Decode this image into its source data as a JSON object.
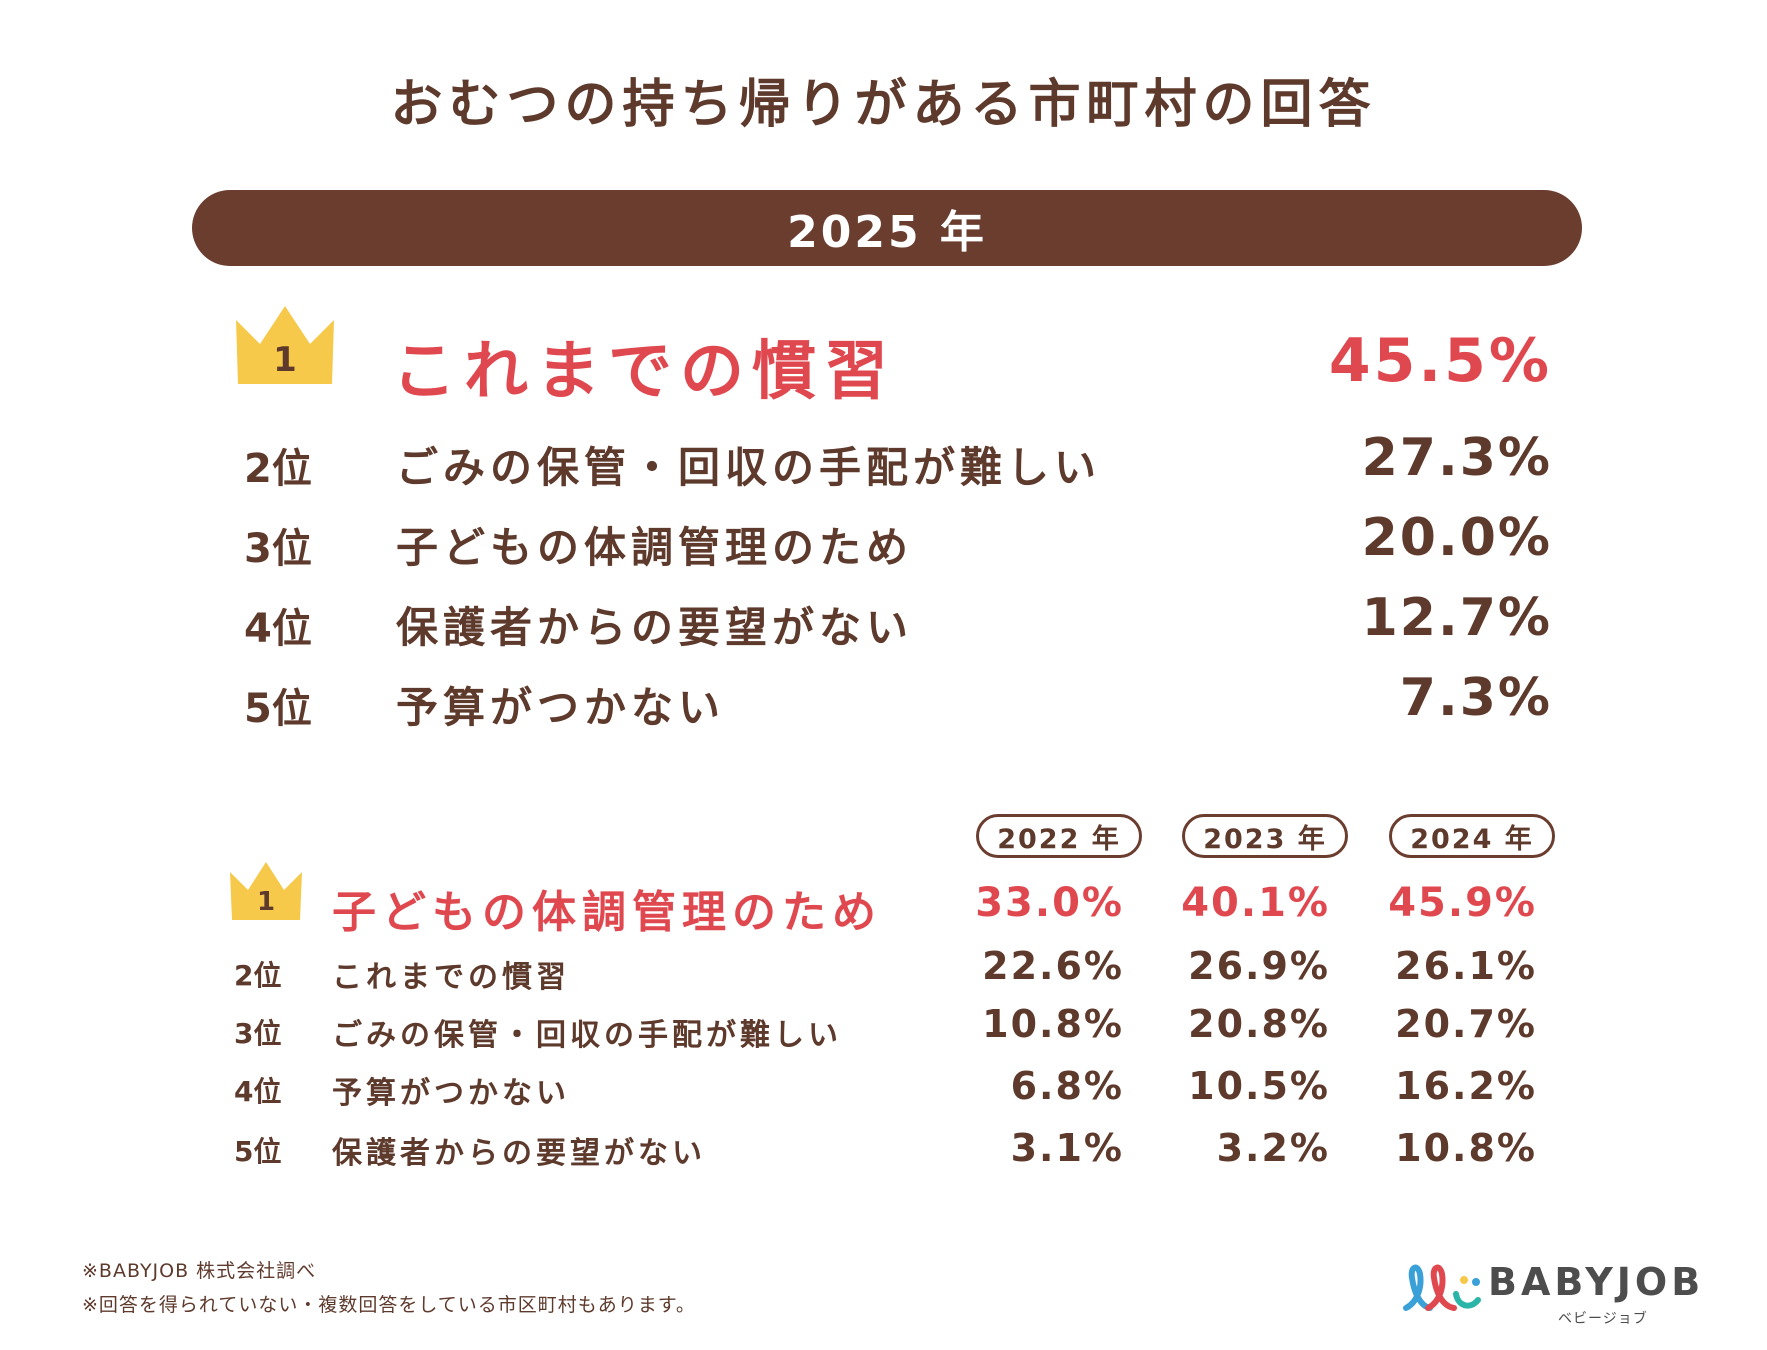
{
  "title": "おむつの持ち帰りがある市町村の回答",
  "banner_year": "2025 年",
  "current": {
    "top": {
      "rank": "1",
      "label": "これまでの慣習",
      "value": "45.5%"
    },
    "rows": [
      {
        "rank": "2位",
        "label": "ごみの保管・回収の手配が難しい",
        "value": "27.3%"
      },
      {
        "rank": "3位",
        "label": "子どもの体調管理のため",
        "value": "20.0%"
      },
      {
        "rank": "4位",
        "label": "保護者からの要望がない",
        "value": "12.7%"
      },
      {
        "rank": "5位",
        "label": "予算がつかない",
        "value": "7.3%"
      }
    ]
  },
  "history": {
    "years": [
      "2022 年",
      "2023 年",
      "2024 年"
    ],
    "top": {
      "rank": "1",
      "label": "子どもの体調管理のため",
      "values": [
        "33.0%",
        "40.1%",
        "45.9%"
      ]
    },
    "rows": [
      {
        "rank": "2位",
        "label": "これまでの慣習",
        "values": [
          "22.6%",
          "26.9%",
          "26.1%"
        ]
      },
      {
        "rank": "3位",
        "label": "ごみの保管・回収の手配が難しい",
        "values": [
          "10.8%",
          "20.8%",
          "20.7%"
        ]
      },
      {
        "rank": "4位",
        "label": "予算がつかない",
        "values": [
          "6.8%",
          "10.5%",
          "16.2%"
        ]
      },
      {
        "rank": "5位",
        "label": "保護者からの要望がない",
        "values": [
          "3.1%",
          "3.2%",
          "10.8%"
        ]
      }
    ]
  },
  "footnotes": [
    "※BABYJOB 株式会社調べ",
    "※回答を得られていない・複数回答をしている市区町村もあります。"
  ],
  "logo": {
    "word": "BABYJOB",
    "kana": "ベビージョブ"
  },
  "colors": {
    "brown": "#6b3d2f",
    "text": "#5e3a2c",
    "accent": "#e0484f",
    "crown": "#f6c94a"
  },
  "chart_data": [
    {
      "type": "table",
      "title": "2025 年",
      "categories": [
        "これまでの慣習",
        "ごみの保管・回収の手配が難しい",
        "子どもの体調管理のため",
        "保護者からの要望がない",
        "予算がつかない"
      ],
      "values": [
        45.5,
        27.3,
        20.0,
        12.7,
        7.3
      ],
      "unit": "%"
    },
    {
      "type": "table",
      "title": "2022 年 / 2023 年 / 2024 年",
      "categories": [
        "子どもの体調管理のため",
        "これまでの慣習",
        "ごみの保管・回収の手配が難しい",
        "予算がつかない",
        "保護者からの要望がない"
      ],
      "series": [
        {
          "name": "2022 年",
          "values": [
            33.0,
            22.6,
            10.8,
            6.8,
            3.1
          ]
        },
        {
          "name": "2023 年",
          "values": [
            40.1,
            26.9,
            20.8,
            10.5,
            3.2
          ]
        },
        {
          "name": "2024 年",
          "values": [
            45.9,
            26.1,
            20.7,
            16.2,
            10.8
          ]
        }
      ],
      "unit": "%"
    }
  ]
}
